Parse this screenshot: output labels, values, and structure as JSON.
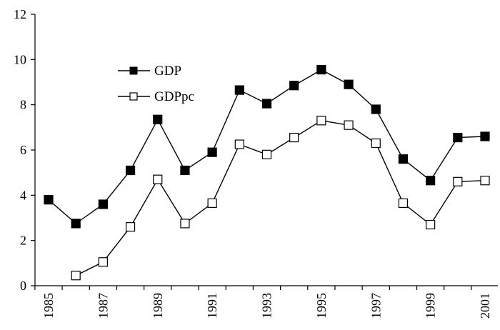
{
  "chart_data": {
    "type": "line",
    "title": "",
    "xlabel": "",
    "ylabel": "",
    "x": [
      1985,
      1986,
      1987,
      1988,
      1989,
      1990,
      1991,
      1992,
      1993,
      1994,
      1995,
      1996,
      1997,
      1998,
      1999,
      2000,
      2001
    ],
    "x_tick_labels": [
      "1985",
      "1987",
      "1989",
      "1991",
      "1993",
      "1995",
      "1997",
      "1999",
      "2001"
    ],
    "y_tick_labels": [
      "0",
      "2",
      "4",
      "6",
      "8",
      "10",
      "12"
    ],
    "ylim": [
      0,
      12
    ],
    "xlim": [
      1985,
      2001
    ],
    "grid": false,
    "legend_position": "upper-left",
    "series": [
      {
        "name": "GDP",
        "marker": "filled-square",
        "color": "#000000",
        "values": [
          3.8,
          2.75,
          3.6,
          5.1,
          7.35,
          5.1,
          5.9,
          8.65,
          8.05,
          8.85,
          9.55,
          8.9,
          7.8,
          5.6,
          4.65,
          6.55,
          6.6
        ]
      },
      {
        "name": "GDPpc",
        "marker": "open-square",
        "color": "#000000",
        "values": [
          null,
          0.45,
          1.05,
          2.6,
          4.7,
          2.75,
          3.65,
          6.25,
          5.8,
          6.55,
          7.3,
          7.1,
          6.3,
          3.65,
          2.7,
          4.6,
          4.65
        ]
      }
    ]
  }
}
